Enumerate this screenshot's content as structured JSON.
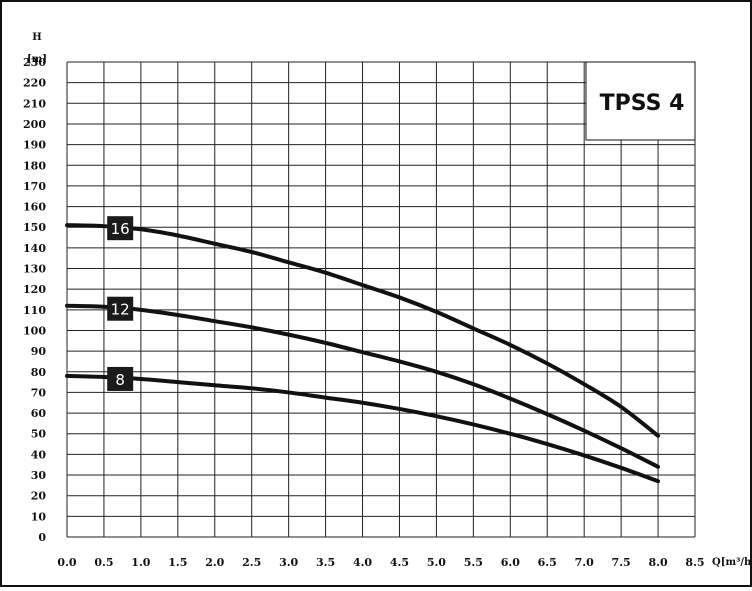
{
  "chart_data": {
    "type": "line",
    "title": "TPSS 4",
    "xlabel": "Q[m³/h]",
    "ylabel_top": "H",
    "ylabel_unit": "[m]",
    "xlim": [
      0,
      8.5
    ],
    "ylim": [
      0,
      230
    ],
    "grid": true,
    "x_ticks": [
      "0.0",
      "0.5",
      "1.0",
      "1.5",
      "2.0",
      "2.5",
      "3.0",
      "3.5",
      "4.0",
      "4.5",
      "5.0",
      "5.5",
      "6.0",
      "6.5",
      "7.0",
      "7.5",
      "8.0",
      "8.5"
    ],
    "y_ticks": [
      "0",
      "10",
      "20",
      "30",
      "40",
      "50",
      "60",
      "70",
      "80",
      "90",
      "100",
      "110",
      "120",
      "130",
      "140",
      "150",
      "160",
      "170",
      "180",
      "190",
      "200",
      "210",
      "220",
      "230"
    ],
    "series": [
      {
        "name": "16",
        "x": [
          0,
          0.5,
          1.0,
          1.5,
          2.0,
          2.5,
          3.0,
          3.5,
          4.0,
          4.5,
          5.0,
          5.5,
          6.0,
          6.5,
          7.0,
          7.5,
          8.0
        ],
        "y": [
          151,
          150.5,
          149,
          146,
          142,
          138,
          133,
          128,
          122,
          116,
          109,
          101,
          93,
          84,
          74,
          63,
          49
        ]
      },
      {
        "name": "12",
        "x": [
          0,
          0.5,
          1.0,
          1.5,
          2.0,
          2.5,
          3.0,
          3.5,
          4.0,
          4.5,
          5.0,
          5.5,
          6.0,
          6.5,
          7.0,
          7.5,
          8.0
        ],
        "y": [
          112,
          111.5,
          110,
          107.5,
          104.5,
          101.5,
          98,
          94,
          89.5,
          85,
          80,
          74,
          67,
          59.5,
          51.5,
          43,
          34
        ]
      },
      {
        "name": "8",
        "x": [
          0,
          0.5,
          1.0,
          1.5,
          2.0,
          2.5,
          3.0,
          3.5,
          4.0,
          4.5,
          5.0,
          5.5,
          6.0,
          6.5,
          7.0,
          7.5,
          8.0
        ],
        "y": [
          78,
          77.5,
          76.5,
          75,
          73.5,
          72,
          70,
          67.5,
          65,
          62,
          58.5,
          54.5,
          50,
          45,
          39.5,
          33.5,
          27
        ]
      }
    ]
  }
}
